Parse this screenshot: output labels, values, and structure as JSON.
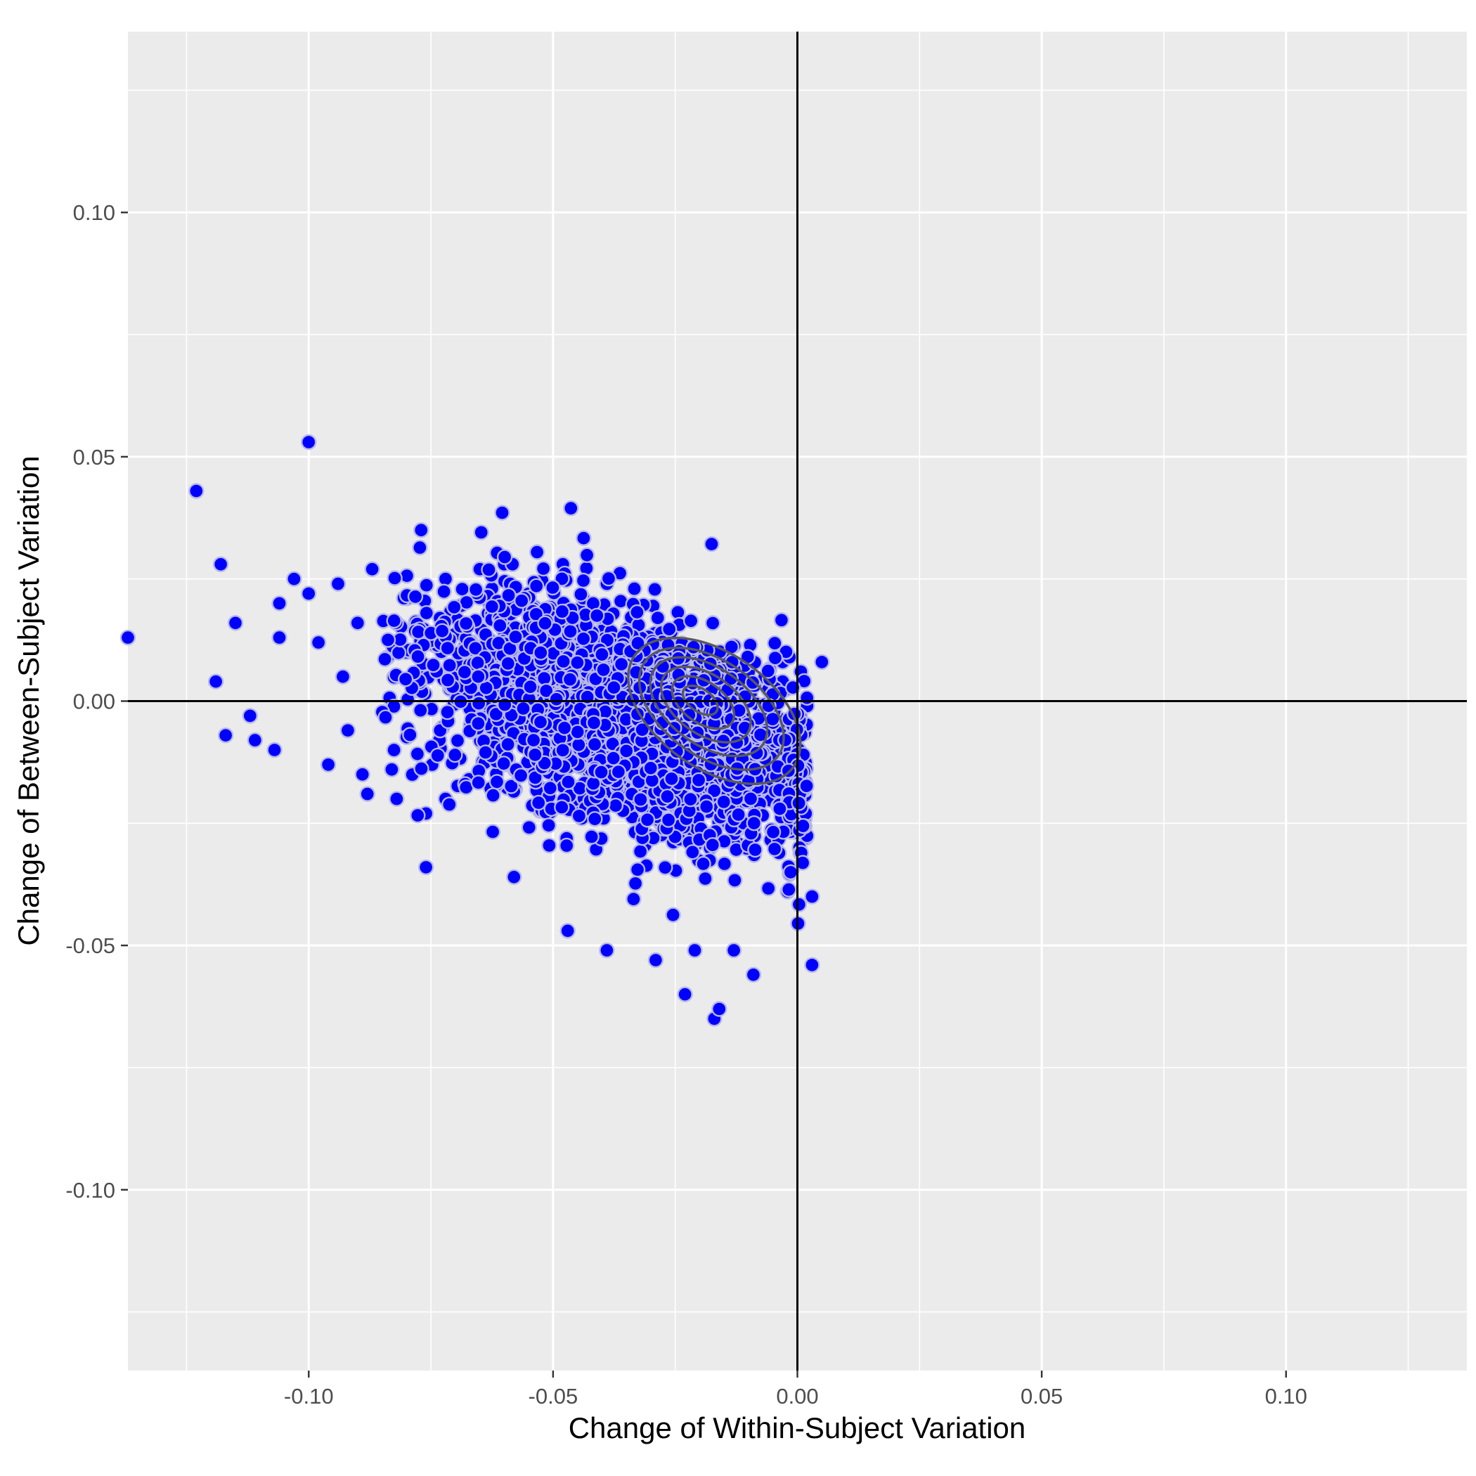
{
  "chart_data": {
    "type": "scatter",
    "title": "",
    "xlabel": "Change of Within-Subject Variation",
    "ylabel": "Change of Between-Subject Variation",
    "xlim": [
      -0.137,
      0.137
    ],
    "ylim": [
      -0.137,
      0.137
    ],
    "x_ticks": [
      -0.1,
      -0.05,
      0.0,
      0.05,
      0.1
    ],
    "x_tick_labels": [
      "-0.10",
      "-0.05",
      "0.00",
      "0.05",
      "0.10"
    ],
    "y_ticks": [
      -0.1,
      -0.05,
      0.0,
      0.05,
      0.1
    ],
    "y_tick_labels": [
      "-0.10",
      "-0.05",
      "0.00",
      "0.05",
      "0.10"
    ],
    "grid": true,
    "reference_lines": {
      "x": 0.0,
      "y": 0.0
    },
    "colors": {
      "panel_background": "#ebebeb",
      "grid": "#ffffff",
      "point_fill": "#0000ff",
      "point_stroke": "#b8b8e8",
      "contour": "#595959",
      "reference_line": "#000000"
    },
    "series": [
      {
        "points": [
          [
            -0.137,
            0.013
          ],
          [
            -0.1,
            0.053
          ],
          [
            -0.123,
            0.043
          ],
          [
            -0.118,
            0.028
          ],
          [
            -0.115,
            0.016
          ],
          [
            -0.119,
            0.004
          ],
          [
            -0.117,
            -0.007
          ],
          [
            -0.112,
            -0.003
          ],
          [
            -0.111,
            -0.008
          ],
          [
            -0.107,
            -0.01
          ],
          [
            -0.106,
            0.02
          ],
          [
            -0.106,
            0.013
          ],
          [
            -0.103,
            0.025
          ],
          [
            -0.1,
            0.022
          ],
          [
            -0.098,
            0.012
          ],
          [
            -0.096,
            -0.013
          ],
          [
            -0.094,
            0.024
          ],
          [
            -0.093,
            0.005
          ],
          [
            -0.092,
            -0.006
          ],
          [
            -0.09,
            0.016
          ],
          [
            -0.089,
            -0.015
          ],
          [
            -0.088,
            -0.019
          ],
          [
            -0.087,
            0.027
          ],
          [
            -0.077,
            0.035
          ],
          [
            -0.076,
            -0.034
          ],
          [
            -0.082,
            -0.02
          ],
          [
            -0.083,
            -0.014
          ],
          [
            -0.072,
            0.025
          ],
          [
            -0.065,
            0.027
          ],
          [
            -0.048,
            0.028
          ],
          [
            -0.06,
            0.028
          ],
          [
            -0.039,
            0.024
          ],
          [
            -0.047,
            -0.047
          ],
          [
            -0.039,
            -0.051
          ],
          [
            -0.029,
            -0.053
          ],
          [
            -0.023,
            -0.06
          ],
          [
            -0.017,
            -0.065
          ],
          [
            -0.016,
            -0.063
          ],
          [
            -0.009,
            -0.056
          ],
          [
            -0.021,
            -0.051
          ],
          [
            -0.013,
            -0.051
          ],
          [
            -0.003,
            0.008
          ],
          [
            0.005,
            0.008
          ],
          [
            0.003,
            -0.04
          ],
          [
            0.003,
            -0.054
          ],
          [
            0.002,
            -0.001
          ],
          [
            -0.002,
            -0.039
          ],
          [
            -0.076,
            -0.023
          ],
          [
            -0.072,
            -0.02
          ],
          [
            -0.058,
            -0.036
          ]
        ]
      }
    ],
    "density_contour": {
      "center": [
        -0.017,
        -0.002
      ],
      "levels": 6
    }
  }
}
